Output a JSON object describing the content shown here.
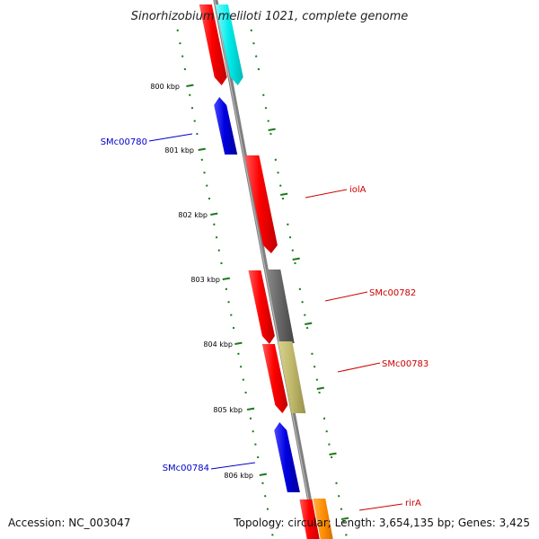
{
  "title": "Sinorhizobium meliloti 1021, complete genome",
  "accession": "Accession: NC_003047",
  "topology": "Topology: circular; Length: 3,654,135 bp; Genes: 3,425",
  "colors": {
    "backbone": "#808080",
    "tick_marks": "#1a7a1a",
    "forward_gene": "#ff0000",
    "reverse_gene": "#0000dd",
    "label_forward": "#cc0000",
    "label_reverse": "#0000cc",
    "cyan_feature": "#00e8e8",
    "gray_feature": "#666666",
    "khaki_feature": "#bfb86a",
    "orange_feature": "#ff8c00"
  },
  "ticks": [
    "800 kbp",
    "801 kbp",
    "802 kbp",
    "803 kbp",
    "804 kbp",
    "805 kbp",
    "806 kbp"
  ],
  "gene_labels": [
    {
      "text": "SMc00780",
      "strand": "reverse"
    },
    {
      "text": "iolA",
      "strand": "forward"
    },
    {
      "text": "SMc00782",
      "strand": "forward"
    },
    {
      "text": "SMc00783",
      "strand": "forward"
    },
    {
      "text": "SMc00784",
      "strand": "reverse"
    },
    {
      "text": "rirA",
      "strand": "forward"
    }
  ]
}
